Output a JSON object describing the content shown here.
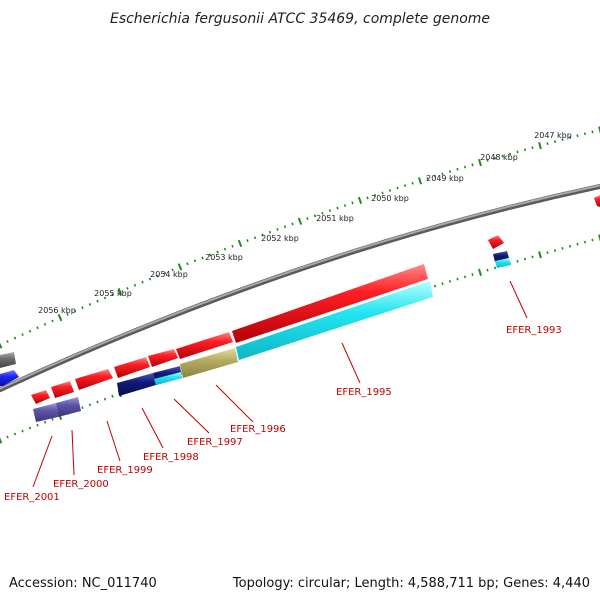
{
  "title": "Escherichia fergusonii ATCC 35469, complete genome",
  "footer": {
    "accession": "Accession: NC_011740",
    "topology": "Topology: circular; Length: 4,588,711 bp; Genes: 4,440"
  },
  "kbp_labels": [
    "2047 kbp",
    "2048 kbp",
    "2049 kbp",
    "2050 kbp",
    "2051 kbp",
    "2052 kbp",
    "2053 kbp",
    "2054 kbp",
    "2055 kbp",
    "2056 kbp"
  ],
  "gene_labels": [
    "EFER_1993",
    "EFER_1995",
    "EFER_1996",
    "EFER_1997",
    "EFER_1998",
    "EFER_1999",
    "EFER_2000",
    "EFER_2001"
  ],
  "colors": {
    "backbone": "#7a7a7a",
    "scale_ticks": "#1f8a1f",
    "gene_red": "#e8141b",
    "gene_cyan": "#22e5f0",
    "gene_navy": "#101a7a",
    "gene_olive": "#b5ad62",
    "gene_slate": "#5c55a8",
    "gene_blue": "#1a26f0",
    "gene_gray": "#6f6f6f",
    "label_red": "#c00000"
  }
}
